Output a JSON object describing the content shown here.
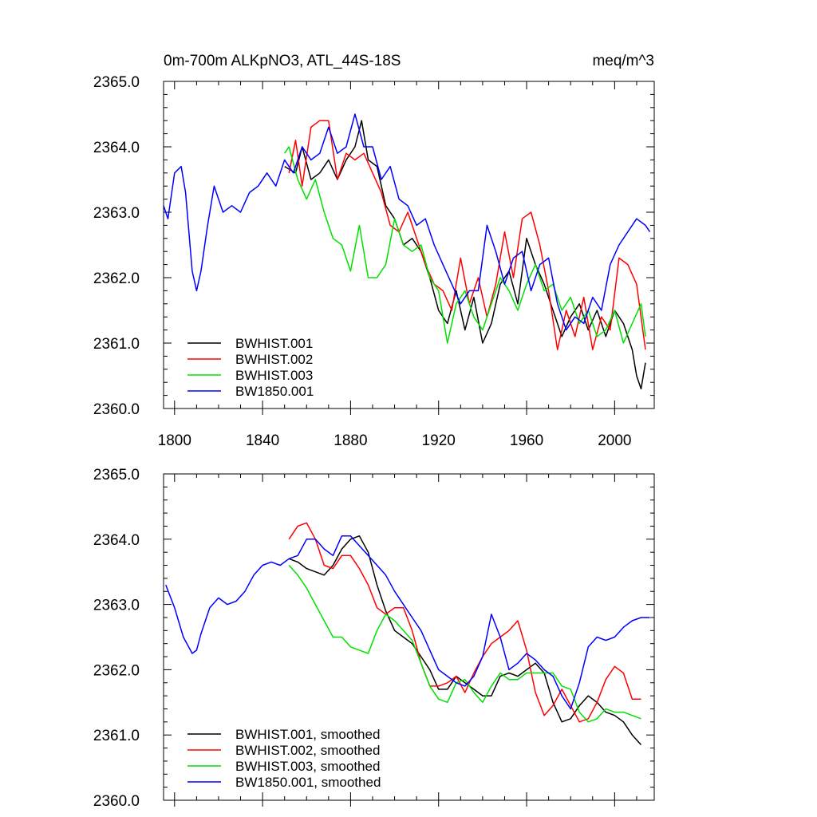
{
  "chart_data": [
    {
      "type": "line",
      "title": "0m-700m ALKpNO3, ATL_44S-18S",
      "units": "meq/m^3",
      "xlabel": "",
      "ylabel": "",
      "xlim": [
        1795,
        2018
      ],
      "ylim": [
        2360.0,
        2365.0
      ],
      "xticks": [
        1800,
        1840,
        1880,
        1920,
        1960,
        2000
      ],
      "xtick_labels": [
        "1800",
        "1840",
        "1880",
        "1920",
        "1960",
        "2000"
      ],
      "yticks": [
        2360.0,
        2361.0,
        2362.0,
        2363.0,
        2364.0,
        2365.0
      ],
      "ytick_labels": [
        "2360.0",
        "2361.0",
        "2362.0",
        "2363.0",
        "2364.0",
        "2365.0"
      ],
      "legend_position": "bottom-left",
      "series": [
        {
          "name": "BWHIST.001",
          "color": "#000000",
          "x": [
            1850,
            1855,
            1858,
            1862,
            1866,
            1870,
            1874,
            1878,
            1882,
            1885,
            1888,
            1892,
            1896,
            1900,
            1904,
            1908,
            1912,
            1916,
            1920,
            1924,
            1928,
            1932,
            1936,
            1940,
            1944,
            1948,
            1952,
            1956,
            1960,
            1964,
            1968,
            1972,
            1976,
            1980,
            1984,
            1988,
            1992,
            1996,
            2000,
            2004,
            2008,
            2010,
            2012,
            2014
          ],
          "y": [
            2363.7,
            2363.6,
            2364.0,
            2363.5,
            2363.6,
            2363.8,
            2363.5,
            2363.8,
            2364.0,
            2364.4,
            2363.8,
            2363.7,
            2363.1,
            2362.9,
            2362.5,
            2362.6,
            2362.4,
            2362.0,
            2361.5,
            2361.3,
            2361.8,
            2361.2,
            2361.7,
            2361.0,
            2361.3,
            2361.9,
            2362.1,
            2361.6,
            2362.6,
            2362.2,
            2361.9,
            2361.5,
            2361.1,
            2361.4,
            2361.6,
            2361.2,
            2361.5,
            2361.1,
            2361.5,
            2361.3,
            2360.9,
            2360.5,
            2360.3,
            2360.7
          ]
        },
        {
          "name": "BWHIST.002",
          "color": "#ff0000",
          "x": [
            1852,
            1855,
            1858,
            1862,
            1866,
            1870,
            1874,
            1878,
            1882,
            1886,
            1890,
            1894,
            1898,
            1902,
            1906,
            1910,
            1914,
            1918,
            1922,
            1926,
            1930,
            1934,
            1938,
            1942,
            1946,
            1950,
            1954,
            1958,
            1962,
            1966,
            1970,
            1974,
            1978,
            1982,
            1986,
            1990,
            1994,
            1998,
            2002,
            2006,
            2010,
            2014
          ],
          "y": [
            2363.6,
            2364.1,
            2363.4,
            2364.3,
            2364.4,
            2364.4,
            2363.5,
            2363.9,
            2363.8,
            2363.9,
            2363.6,
            2363.3,
            2362.8,
            2362.7,
            2363.0,
            2362.6,
            2362.2,
            2361.9,
            2361.8,
            2361.5,
            2362.3,
            2361.6,
            2362.0,
            2361.4,
            2361.9,
            2362.7,
            2362.0,
            2362.9,
            2363.0,
            2362.5,
            2361.8,
            2360.9,
            2361.5,
            2361.1,
            2361.7,
            2360.9,
            2361.4,
            2361.2,
            2362.3,
            2362.2,
            2361.9,
            2360.9
          ]
        },
        {
          "name": "BWHIST.003",
          "color": "#00e000",
          "x": [
            1850,
            1852,
            1856,
            1860,
            1864,
            1868,
            1872,
            1876,
            1880,
            1884,
            1888,
            1892,
            1896,
            1900,
            1904,
            1908,
            1912,
            1916,
            1920,
            1924,
            1928,
            1932,
            1936,
            1940,
            1944,
            1948,
            1952,
            1956,
            1960,
            1964,
            1968,
            1972,
            1976,
            1980,
            1984,
            1988,
            1992,
            1996,
            2000,
            2004,
            2008,
            2012,
            2014
          ],
          "y": [
            2363.9,
            2364.0,
            2363.5,
            2363.2,
            2363.5,
            2363.0,
            2362.6,
            2362.5,
            2362.1,
            2362.8,
            2362.0,
            2362.0,
            2362.2,
            2362.9,
            2362.5,
            2362.4,
            2362.5,
            2362.0,
            2361.8,
            2361.0,
            2361.6,
            2361.8,
            2361.4,
            2361.2,
            2361.6,
            2362.0,
            2361.8,
            2361.5,
            2361.9,
            2362.2,
            2361.8,
            2361.9,
            2361.5,
            2361.7,
            2361.3,
            2361.5,
            2361.1,
            2361.2,
            2361.5,
            2361.0,
            2361.3,
            2361.6,
            2361.1
          ]
        },
        {
          "name": "BW1850.001",
          "color": "#0000ff",
          "x": [
            1795,
            1797,
            1800,
            1803,
            1805,
            1808,
            1810,
            1812,
            1815,
            1818,
            1822,
            1826,
            1830,
            1834,
            1838,
            1842,
            1846,
            1850,
            1854,
            1858,
            1862,
            1866,
            1870,
            1874,
            1878,
            1882,
            1886,
            1890,
            1894,
            1898,
            1902,
            1906,
            1910,
            1914,
            1918,
            1922,
            1926,
            1930,
            1934,
            1938,
            1942,
            1946,
            1950,
            1954,
            1958,
            1962,
            1966,
            1970,
            1974,
            1978,
            1982,
            1986,
            1990,
            1994,
            1998,
            2002,
            2006,
            2010,
            2014,
            2016
          ],
          "y": [
            2363.1,
            2362.9,
            2363.6,
            2363.7,
            2363.3,
            2362.1,
            2361.8,
            2362.1,
            2362.8,
            2363.4,
            2363.0,
            2363.1,
            2363.0,
            2363.3,
            2363.4,
            2363.6,
            2363.4,
            2363.8,
            2363.6,
            2364.0,
            2363.8,
            2363.9,
            2364.3,
            2363.9,
            2364.0,
            2364.5,
            2364.0,
            2364.0,
            2363.5,
            2363.7,
            2363.2,
            2363.1,
            2362.8,
            2362.9,
            2362.5,
            2362.2,
            2361.9,
            2361.6,
            2361.8,
            2361.8,
            2362.8,
            2362.4,
            2361.9,
            2362.3,
            2362.4,
            2361.8,
            2362.2,
            2362.3,
            2361.6,
            2361.2,
            2361.4,
            2361.3,
            2361.7,
            2361.5,
            2362.2,
            2362.5,
            2362.7,
            2362.9,
            2362.8,
            2362.7
          ]
        }
      ]
    },
    {
      "type": "line",
      "title": "",
      "xlabel": "",
      "ylabel": "",
      "xlim": [
        1795,
        2018
      ],
      "ylim": [
        2360.0,
        2365.0
      ],
      "xticks": [
        1800,
        1840,
        1880,
        1920,
        1960,
        2000
      ],
      "yticks": [
        2360.0,
        2361.0,
        2362.0,
        2363.0,
        2364.0,
        2365.0
      ],
      "ytick_labels": [
        "2360.0",
        "2361.0",
        "2362.0",
        "2363.0",
        "2364.0",
        "2365.0"
      ],
      "legend_position": "bottom-left",
      "series": [
        {
          "name": "BWHIST.001, smoothed",
          "color": "#000000",
          "x": [
            1852,
            1856,
            1860,
            1864,
            1868,
            1872,
            1876,
            1880,
            1884,
            1888,
            1892,
            1896,
            1900,
            1904,
            1908,
            1912,
            1916,
            1920,
            1924,
            1928,
            1932,
            1936,
            1940,
            1944,
            1948,
            1952,
            1956,
            1960,
            1964,
            1968,
            1972,
            1976,
            1980,
            1984,
            1988,
            1992,
            1996,
            2000,
            2004,
            2008,
            2012
          ],
          "y": [
            2363.7,
            2363.65,
            2363.55,
            2363.5,
            2363.45,
            2363.6,
            2363.85,
            2364.0,
            2364.05,
            2363.8,
            2363.3,
            2362.9,
            2362.6,
            2362.5,
            2362.4,
            2362.2,
            2362.0,
            2361.7,
            2361.7,
            2361.9,
            2361.8,
            2361.7,
            2361.6,
            2361.6,
            2361.9,
            2361.95,
            2361.9,
            2362.0,
            2362.1,
            2361.95,
            2361.5,
            2361.2,
            2361.25,
            2361.45,
            2361.6,
            2361.5,
            2361.35,
            2361.3,
            2361.2,
            2361.0,
            2360.85
          ]
        },
        {
          "name": "BWHIST.002, smoothed",
          "color": "#ff0000",
          "x": [
            1852,
            1856,
            1860,
            1864,
            1868,
            1872,
            1876,
            1880,
            1884,
            1888,
            1892,
            1896,
            1900,
            1904,
            1908,
            1912,
            1916,
            1920,
            1924,
            1928,
            1932,
            1936,
            1940,
            1944,
            1948,
            1952,
            1956,
            1960,
            1964,
            1968,
            1972,
            1976,
            1980,
            1984,
            1988,
            1992,
            1996,
            2000,
            2004,
            2008,
            2012
          ],
          "y": [
            2364.0,
            2364.2,
            2364.25,
            2364.0,
            2363.6,
            2363.55,
            2363.75,
            2363.75,
            2363.55,
            2363.3,
            2362.95,
            2362.85,
            2362.95,
            2362.95,
            2362.6,
            2362.1,
            2361.75,
            2361.75,
            2361.8,
            2361.9,
            2361.65,
            2361.95,
            2362.2,
            2362.4,
            2362.5,
            2362.6,
            2362.75,
            2362.3,
            2361.65,
            2361.3,
            2361.45,
            2361.7,
            2361.45,
            2361.2,
            2361.25,
            2361.5,
            2361.85,
            2362.05,
            2361.95,
            2361.55,
            2361.55
          ]
        },
        {
          "name": "BWHIST.003, smoothed",
          "color": "#00e000",
          "x": [
            1852,
            1856,
            1860,
            1864,
            1868,
            1872,
            1876,
            1880,
            1884,
            1888,
            1892,
            1896,
            1900,
            1904,
            1908,
            1912,
            1916,
            1920,
            1924,
            1928,
            1932,
            1936,
            1940,
            1944,
            1948,
            1952,
            1956,
            1960,
            1964,
            1968,
            1972,
            1976,
            1980,
            1984,
            1988,
            1992,
            1996,
            2000,
            2004,
            2008,
            2012
          ],
          "y": [
            2363.6,
            2363.45,
            2363.25,
            2363.0,
            2362.75,
            2362.5,
            2362.5,
            2362.35,
            2362.3,
            2362.25,
            2362.6,
            2362.85,
            2362.75,
            2362.6,
            2362.45,
            2362.1,
            2361.75,
            2361.55,
            2361.5,
            2361.8,
            2361.85,
            2361.65,
            2361.5,
            2361.75,
            2361.95,
            2361.85,
            2361.85,
            2361.95,
            2361.95,
            2361.95,
            2361.95,
            2361.75,
            2361.7,
            2361.35,
            2361.2,
            2361.25,
            2361.4,
            2361.35,
            2361.35,
            2361.3,
            2361.25
          ]
        },
        {
          "name": "BW1850.001, smoothed",
          "color": "#0000ff",
          "x": [
            1796,
            1800,
            1804,
            1808,
            1810,
            1812,
            1816,
            1820,
            1824,
            1828,
            1832,
            1836,
            1840,
            1844,
            1848,
            1852,
            1856,
            1860,
            1864,
            1868,
            1872,
            1876,
            1880,
            1884,
            1888,
            1892,
            1896,
            1900,
            1904,
            1908,
            1912,
            1916,
            1920,
            1924,
            1928,
            1932,
            1936,
            1940,
            1944,
            1948,
            1952,
            1956,
            1960,
            1964,
            1968,
            1972,
            1976,
            1980,
            1984,
            1988,
            1992,
            1996,
            2000,
            2004,
            2008,
            2012,
            2016
          ],
          "y": [
            2363.3,
            2362.95,
            2362.5,
            2362.25,
            2362.3,
            2362.55,
            2362.95,
            2363.1,
            2363.0,
            2363.05,
            2363.2,
            2363.45,
            2363.6,
            2363.65,
            2363.6,
            2363.7,
            2363.75,
            2364.0,
            2364.0,
            2363.85,
            2363.75,
            2364.05,
            2364.05,
            2363.9,
            2363.75,
            2363.6,
            2363.45,
            2363.2,
            2363.0,
            2362.8,
            2362.6,
            2362.3,
            2362.0,
            2361.9,
            2361.8,
            2361.75,
            2361.9,
            2362.2,
            2362.85,
            2362.5,
            2362.0,
            2362.1,
            2362.25,
            2362.15,
            2362.0,
            2361.9,
            2361.6,
            2361.4,
            2361.8,
            2362.35,
            2362.5,
            2362.45,
            2362.5,
            2362.65,
            2362.75,
            2362.8,
            2362.8
          ]
        }
      ]
    }
  ]
}
